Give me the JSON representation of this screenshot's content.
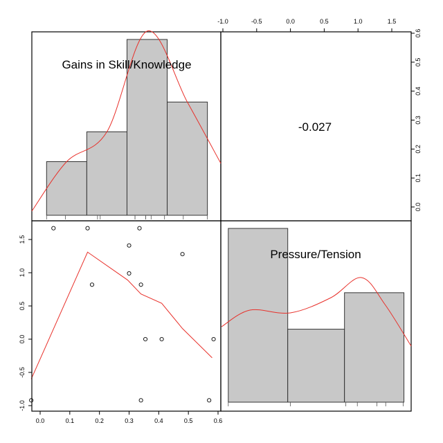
{
  "chart_data": [
    {
      "type": "bar",
      "panel": "top-left",
      "title": "Gains in Skill/Knowledge",
      "bins": [
        [
          -0.03,
          0.12
        ],
        [
          0.12,
          0.27
        ],
        [
          0.27,
          0.42
        ],
        [
          0.42,
          0.57
        ]
      ],
      "density": [
        0.18,
        0.28,
        0.59,
        0.38
      ],
      "y_axis": {
        "ticks": [
          0.0,
          0.1,
          0.2,
          0.3,
          0.4,
          0.5,
          0.6
        ],
        "labels": [
          "0.0",
          "0.1",
          "0.2",
          "0.3",
          "0.4",
          "0.5",
          "0.6"
        ]
      },
      "rug": [
        -0.03,
        0.04,
        0.16,
        0.17,
        0.3,
        0.3,
        0.34,
        0.34,
        0.36,
        0.41,
        0.48,
        0.57
      ],
      "density_curve": "red"
    },
    {
      "type": "table",
      "panel": "top-right",
      "correlation": "-0.027"
    },
    {
      "type": "scatter",
      "panel": "bottom-left",
      "x_axis": {
        "ticks": [
          0.0,
          0.1,
          0.2,
          0.3,
          0.4,
          0.5,
          0.6
        ],
        "labels": [
          "0.0",
          "0.1",
          "0.2",
          "0.3",
          "0.4",
          "0.5",
          "0.6"
        ],
        "range": [
          -0.03,
          0.6
        ]
      },
      "y_axis": {
        "ticks": [
          -1.0,
          -0.5,
          0.0,
          0.5,
          1.0,
          1.5
        ],
        "labels": [
          "-1.0",
          "-0.5",
          "0.0",
          "0.5",
          "1.0",
          "1.5"
        ],
        "range": [
          -1.05,
          1.85
        ]
      },
      "points": [
        [
          0.045,
          1.67
        ],
        [
          0.16,
          1.67
        ],
        [
          0.335,
          1.67
        ],
        [
          0.3,
          1.41
        ],
        [
          0.48,
          1.28
        ],
        [
          0.3,
          0.99
        ],
        [
          0.175,
          0.82
        ],
        [
          0.34,
          0.82
        ],
        [
          0.41,
          0.0
        ],
        [
          0.355,
          0.0
        ],
        [
          0.585,
          0.0
        ],
        [
          -0.03,
          -0.92
        ],
        [
          0.34,
          -0.92
        ],
        [
          0.57,
          -0.92
        ]
      ],
      "smooth_line": [
        [
          -0.03,
          -0.6
        ],
        [
          0.16,
          1.31
        ],
        [
          0.295,
          0.89
        ],
        [
          0.34,
          0.68
        ],
        [
          0.41,
          0.54
        ],
        [
          0.48,
          0.16
        ],
        [
          0.58,
          -0.28
        ]
      ]
    },
    {
      "type": "bar",
      "panel": "bottom-right",
      "title": "Pressure/Tension",
      "bins": [
        [
          -0.92,
          -0.04
        ],
        [
          -0.04,
          0.8
        ],
        [
          0.8,
          1.68
        ]
      ],
      "density": [
        1.0,
        0.42,
        0.63
      ],
      "x_axis": {
        "ticks": [
          -1.0,
          -0.5,
          0.0,
          0.5,
          1.0,
          1.5
        ],
        "labels": [
          "-1.0",
          "-0.5",
          "0.0",
          "0.5",
          "1.0",
          "1.5"
        ],
        "range": [
          -1.05,
          1.85
        ]
      },
      "rug": [
        -0.92,
        0.0,
        0.82,
        0.99,
        1.28,
        1.41,
        1.67
      ],
      "density_curve": "red"
    }
  ]
}
